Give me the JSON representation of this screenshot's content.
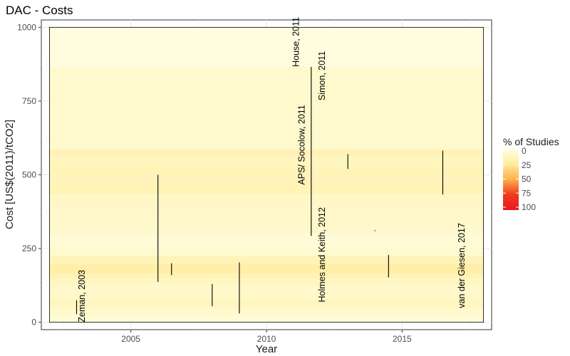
{
  "chart_data": {
    "type": "heatmap",
    "title": "DAC - Costs",
    "xlabel": "Year",
    "ylabel": "Cost [US$(2011)/tCO2]",
    "xlim": [
      2001.7,
      2018.3
    ],
    "ylim": [
      -25,
      1025
    ],
    "x_ticks": [
      2005,
      2010,
      2015
    ],
    "y_ticks": [
      0,
      250,
      500,
      750,
      1000
    ],
    "grid": true,
    "legend": {
      "title": "% of Studies",
      "position": "right",
      "labels": [
        "0",
        "25",
        "50",
        "75",
        "100"
      ],
      "values": [
        0,
        25,
        50,
        75,
        100
      ],
      "colors": [
        "#FFFFE6",
        "#FFEDA0",
        "#FEB24C",
        "#F03B20",
        "#E31A1C"
      ]
    },
    "background_rect": {
      "x": [
        2002,
        2018
      ],
      "y": [
        0,
        1000
      ]
    },
    "density_bands": [
      {
        "y0": 0,
        "y1": 25,
        "pct": 6
      },
      {
        "y0": 25,
        "y1": 50,
        "pct": 9
      },
      {
        "y0": 50,
        "y1": 75,
        "pct": 14
      },
      {
        "y0": 75,
        "y1": 100,
        "pct": 11
      },
      {
        "y0": 100,
        "y1": 125,
        "pct": 10
      },
      {
        "y0": 125,
        "y1": 150,
        "pct": 13
      },
      {
        "y0": 150,
        "y1": 165,
        "pct": 18
      },
      {
        "y0": 165,
        "y1": 200,
        "pct": 22
      },
      {
        "y0": 200,
        "y1": 225,
        "pct": 16
      },
      {
        "y0": 225,
        "y1": 250,
        "pct": 8
      },
      {
        "y0": 250,
        "y1": 275,
        "pct": 6
      },
      {
        "y0": 275,
        "y1": 300,
        "pct": 5
      },
      {
        "y0": 300,
        "y1": 375,
        "pct": 10
      },
      {
        "y0": 375,
        "y1": 400,
        "pct": 11
      },
      {
        "y0": 400,
        "y1": 435,
        "pct": 11
      },
      {
        "y0": 435,
        "y1": 480,
        "pct": 17
      },
      {
        "y0": 480,
        "y1": 505,
        "pct": 15
      },
      {
        "y0": 505,
        "y1": 530,
        "pct": 17
      },
      {
        "y0": 530,
        "y1": 565,
        "pct": 14
      },
      {
        "y0": 565,
        "y1": 585,
        "pct": 18
      },
      {
        "y0": 585,
        "y1": 865,
        "pct": 9
      },
      {
        "y0": 865,
        "y1": 1000,
        "pct": 3
      }
    ],
    "ranges": [
      {
        "year": 2003.0,
        "low": 28,
        "high": 75,
        "label": "Zeman, 2003",
        "label_y": 0,
        "label_x": 2003.3,
        "anchor": "start"
      },
      {
        "year": 2006.0,
        "low": 137,
        "high": 500
      },
      {
        "year": 2006.5,
        "low": 160,
        "high": 200
      },
      {
        "year": 2008.0,
        "low": 55,
        "high": 130
      },
      {
        "year": 2009.0,
        "low": 30,
        "high": 203
      },
      {
        "year": 2011.65,
        "low": 293,
        "high": 866,
        "label": "House, 2011",
        "label_y": 866,
        "label_x": 2011.2,
        "anchor": "start"
      },
      {
        "year": 2011.75,
        "label": "APS/ Socolow, 2011",
        "label_y": 466,
        "label_x": 2011.4,
        "anchor": "start"
      },
      {
        "year": 2011.85,
        "label": "Simon, 2011",
        "label_y": 752,
        "label_x": 2012.15,
        "anchor": "start"
      },
      {
        "year": 2012.0,
        "label": "Holmes and Keith, 2012",
        "label_y": 68,
        "label_x": 2012.15,
        "anchor": "start"
      },
      {
        "year": 2013.0,
        "low": 520,
        "high": 570
      },
      {
        "year": 2014.0,
        "low": 309,
        "high": 312
      },
      {
        "year": 2014.5,
        "low": 152,
        "high": 228
      },
      {
        "year": 2016.5,
        "low": 433,
        "high": 582
      },
      {
        "year": 2017.3,
        "label": "van der Giesen, 2017",
        "label_y": 48,
        "label_x": 2017.3,
        "anchor": "start"
      }
    ]
  }
}
